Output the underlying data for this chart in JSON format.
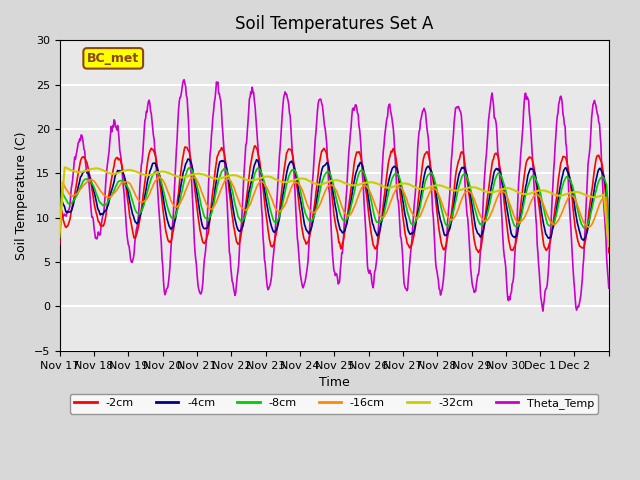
{
  "title": "Soil Temperatures Set A",
  "xlabel": "Time",
  "ylabel": "Soil Temperature (C)",
  "ylim": [
    -5,
    30
  ],
  "xlim": [
    0,
    16
  ],
  "xtick_positions": [
    0,
    1,
    2,
    3,
    4,
    5,
    6,
    7,
    8,
    9,
    10,
    11,
    12,
    13,
    14,
    15,
    16
  ],
  "xtick_labels": [
    "Nov 17",
    "Nov 18",
    "Nov 19",
    "Nov 20",
    "Nov 21",
    "Nov 22",
    "Nov 23",
    "Nov 24",
    "Nov 25",
    "Nov 26",
    "Nov 27",
    "Nov 28",
    "Nov 29",
    "Nov 30",
    "Dec 1",
    "Dec 2",
    ""
  ],
  "ytick_values": [
    -5,
    0,
    5,
    10,
    15,
    20,
    25,
    30
  ],
  "fig_bg_color": "#d8d8d8",
  "plot_bg_color": "#e8e8e8",
  "grid_color": "#ffffff",
  "annotation_text": "BC_met",
  "annotation_bg": "#ffff00",
  "annotation_border": "#8B4513",
  "series_colors": {
    "2cm": "#ff0000",
    "4cm": "#00008b",
    "8cm": "#00cc00",
    "16cm": "#ff8800",
    "32cm": "#cccc00",
    "Theta": "#cc00cc"
  },
  "legend_labels": [
    "-2cm",
    "-4cm",
    "-8cm",
    "-16cm",
    "-32cm",
    "Theta_Temp"
  ]
}
